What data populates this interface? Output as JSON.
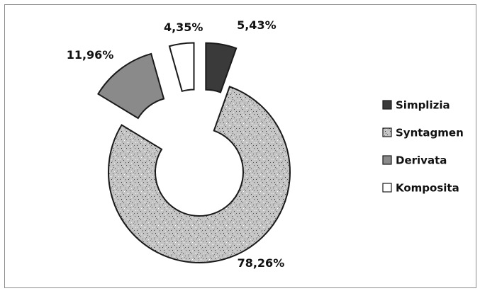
{
  "chart_data": {
    "type": "pie",
    "variant": "donut-exploded",
    "categories": [
      "Simplizia",
      "Syntagmen",
      "Derivata",
      "Komposita"
    ],
    "values": [
      5.43,
      78.26,
      11.96,
      4.35
    ],
    "value_labels": [
      "5,43%",
      "78,26%",
      "11,96%",
      "4,35%"
    ],
    "legend_position": "right",
    "colors": [
      "#3a3a3a",
      "url(#speckle)",
      "#8a8a8a",
      "#ffffff"
    ]
  }
}
